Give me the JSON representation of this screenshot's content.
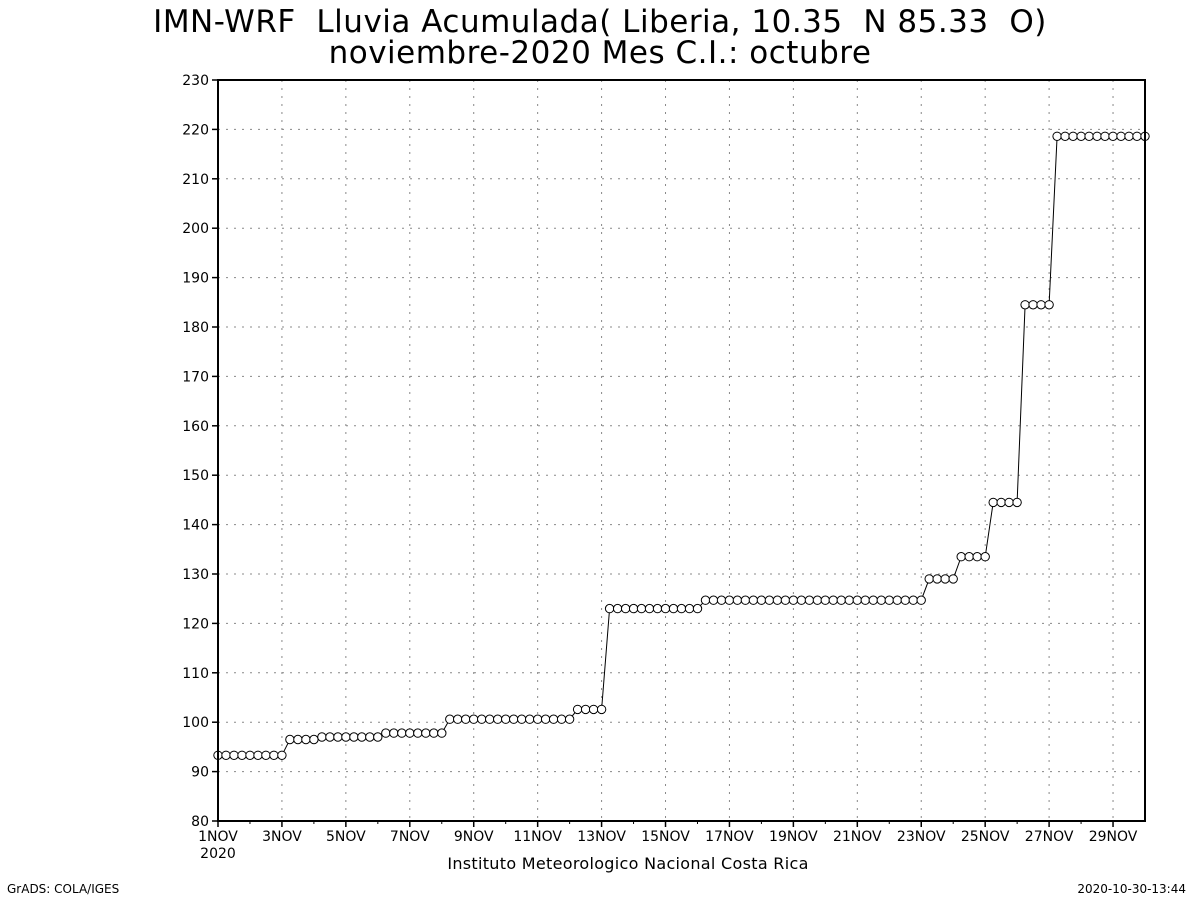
{
  "header": {
    "title_line1": "IMN-WRF  Lluvia Acumulada( Liberia, 10.35  N 85.33  O)",
    "title_line2": "noviembre-2020 Mes C.I.: octubre"
  },
  "footer": {
    "left": "GrADS: COLA/IGES",
    "right": "2020-10-30-13:44",
    "credit": "Instituto Meteorologico Nacional Costa Rica"
  },
  "chart_data": {
    "type": "line",
    "title": "IMN-WRF  Lluvia Acumulada( Liberia, 10.35  N 85.33  O)",
    "subtitle": "noviembre-2020 Mes C.I.: octubre",
    "xlabel": "",
    "ylabel": "",
    "xlim": [
      "2020-11-01T00",
      "2020-11-30T00"
    ],
    "ylim": [
      80,
      230
    ],
    "grid": true,
    "legend": "none",
    "y_ticks": [
      80,
      90,
      100,
      110,
      120,
      130,
      140,
      150,
      160,
      170,
      180,
      190,
      200,
      210,
      220,
      230
    ],
    "x_ticks": [
      {
        "date": "2020-11-01",
        "label": "1NOV",
        "sublabel": "2020"
      },
      {
        "date": "2020-11-03",
        "label": "3NOV"
      },
      {
        "date": "2020-11-05",
        "label": "5NOV"
      },
      {
        "date": "2020-11-07",
        "label": "7NOV"
      },
      {
        "date": "2020-11-09",
        "label": "9NOV"
      },
      {
        "date": "2020-11-11",
        "label": "11NOV"
      },
      {
        "date": "2020-11-13",
        "label": "13NOV"
      },
      {
        "date": "2020-11-15",
        "label": "15NOV"
      },
      {
        "date": "2020-11-17",
        "label": "17NOV"
      },
      {
        "date": "2020-11-19",
        "label": "19NOV"
      },
      {
        "date": "2020-11-21",
        "label": "21NOV"
      },
      {
        "date": "2020-11-23",
        "label": "23NOV"
      },
      {
        "date": "2020-11-25",
        "label": "25NOV"
      },
      {
        "date": "2020-11-27",
        "label": "27NOV"
      },
      {
        "date": "2020-11-29",
        "label": "29NOV"
      }
    ],
    "series": [
      {
        "x_start": "2020-11-01T00",
        "x_step_hours": 6,
        "values": [
          93.3,
          93.3,
          93.3,
          93.3,
          93.3,
          93.3,
          93.3,
          93.3,
          93.3,
          96.5,
          96.5,
          96.5,
          96.5,
          97.0,
          97.0,
          97.0,
          97.0,
          97.0,
          97.0,
          97.0,
          97.0,
          97.8,
          97.8,
          97.8,
          97.8,
          97.8,
          97.8,
          97.8,
          97.8,
          100.6,
          100.6,
          100.6,
          100.6,
          100.6,
          100.6,
          100.6,
          100.6,
          100.6,
          100.6,
          100.6,
          100.6,
          100.6,
          100.6,
          100.6,
          100.6,
          102.6,
          102.6,
          102.6,
          102.6,
          123.0,
          123.0,
          123.0,
          123.0,
          123.0,
          123.0,
          123.0,
          123.0,
          123.0,
          123.0,
          123.0,
          123.0,
          124.7,
          124.7,
          124.7,
          124.7,
          124.7,
          124.7,
          124.7,
          124.7,
          124.7,
          124.7,
          124.7,
          124.7,
          124.7,
          124.7,
          124.7,
          124.7,
          124.7,
          124.7,
          124.7,
          124.7,
          124.7,
          124.7,
          124.7,
          124.7,
          124.7,
          124.7,
          124.7,
          124.7,
          129.0,
          129.0,
          129.0,
          129.0,
          133.5,
          133.5,
          133.5,
          133.5,
          144.5,
          144.5,
          144.5,
          144.5,
          184.5,
          184.5,
          184.5,
          184.5,
          218.6,
          218.6,
          218.6,
          218.6,
          218.6,
          218.6,
          218.6,
          218.6,
          218.6,
          218.6,
          218.6,
          218.6
        ]
      }
    ]
  }
}
